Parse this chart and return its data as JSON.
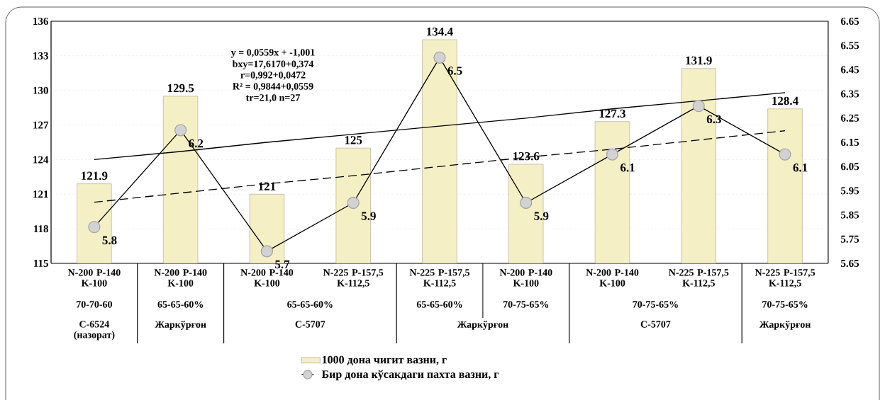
{
  "chart_data": {
    "type": "bar",
    "categories": [
      "N-200 P-140 K-100",
      "N-200 P-140 K-100",
      "N-200 P-140 K-100",
      "N-225 P-157,5 K-112,5",
      "N-225 P-157,5 K-112,5",
      "N-200 P-140 K-100",
      "N-200 P-140 K-100",
      "N-225 P-157,5 K-112,5",
      "N-225 P-157,5 K-112,5"
    ],
    "annotations": [
      "y = 0,0559x + -1,001",
      "bxy=17,6170+0,374",
      "r=0,992+0,0472",
      "R² = 0,9844+0,0559",
      "tr=21,0 n=27",
      "70-70-60",
      "65-65-60%",
      "65-65-60%",
      "65-65-60%",
      "70-75-65%",
      "70-75-65%",
      "70-75-65%",
      "С-6524 (назорат)",
      "Жаркўрғон",
      "С-5707",
      "Жаркўрғон",
      "С-5707",
      "Жаркўрғон"
    ],
    "series": [
      {
        "name": "1000 дона чигит вазни, г",
        "color": "#f5efc6",
        "values": [
          121.9,
          129.5,
          121,
          125,
          134.4,
          123.6,
          127.3,
          131.9,
          128.4
        ],
        "data_labels": true
      },
      {
        "name": "Бир дона кўсакдаги пахта вазни, г",
        "type": "line",
        "axis": "y2",
        "color": "#000000",
        "marker": "circle",
        "values": [
          5.8,
          6.2,
          5.7,
          5.9,
          6.5,
          5.9,
          6.1,
          6.3,
          6.1
        ],
        "data_labels": true
      },
      {
        "type": "line",
        "values": [
          124.0,
          124.7,
          125.5,
          126.2,
          126.9,
          127.6,
          128.4,
          129.1,
          129.8
        ],
        "color": "#000000",
        "line_style": "solid"
      },
      {
        "type": "line",
        "values": [
          120.3,
          121.1,
          121.9,
          122.6,
          123.4,
          124.2,
          124.9,
          125.7,
          126.5
        ],
        "color": "#000000",
        "line_style": "dashed"
      }
    ],
    "ylim": [
      115,
      136
    ],
    "yticks": [
      115,
      118,
      121,
      124,
      127,
      130,
      133,
      136
    ],
    "y2lim": [
      5.65,
      6.65
    ],
    "y2ticks": [
      5.65,
      5.75,
      5.85,
      5.95,
      6.05,
      6.15,
      6.25,
      6.35,
      6.45,
      6.55,
      6.65
    ],
    "grid": "y",
    "legend": "bottom"
  }
}
